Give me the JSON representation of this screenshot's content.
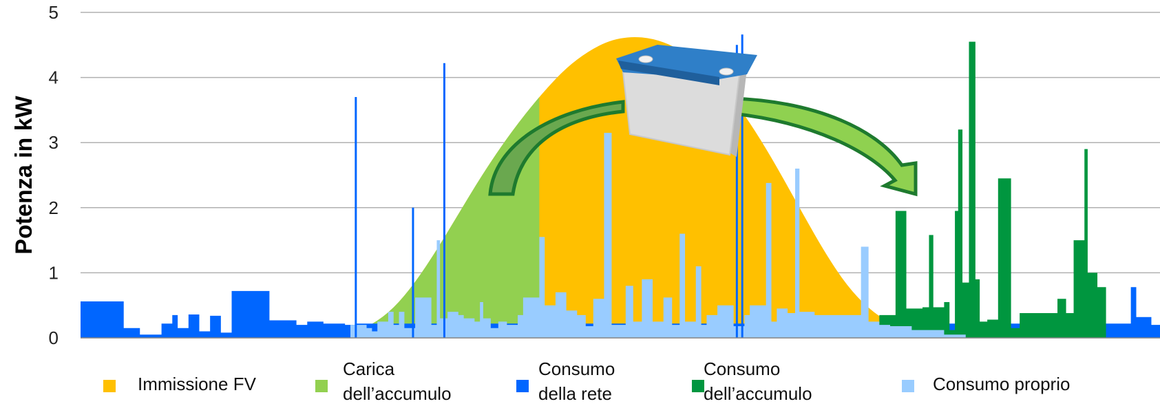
{
  "chart_data": {
    "type": "area",
    "title": "",
    "xlabel": "",
    "ylabel": "Potenza in kW",
    "ylim": [
      0,
      5
    ],
    "yticks": [
      "0",
      "1",
      "2",
      "3",
      "4",
      "5"
    ],
    "grid": true,
    "legend_position": "bottom",
    "colors": {
      "immissione_fv": "#ffc000",
      "carica_accumulo": "#92d050",
      "consumo_rete": "#0066ff",
      "consumo_accumulo": "#00963f",
      "consumo_proprio": "#99ccff"
    },
    "legend": [
      {
        "key": "immissione_fv",
        "lines": [
          "Immissione FV"
        ]
      },
      {
        "key": "carica_accumulo",
        "lines": [
          "Carica",
          "dell’accumulo"
        ]
      },
      {
        "key": "consumo_rete",
        "lines": [
          "Consumo",
          "della rete"
        ]
      },
      {
        "key": "consumo_accumulo",
        "lines": [
          "Consumo",
          "dell’accumulo"
        ]
      },
      {
        "key": "consumo_proprio",
        "lines": [
          "Consumo proprio"
        ]
      }
    ],
    "x_domain": [
      0,
      100
    ],
    "pv_generation": {
      "x": [
        0,
        20,
        23,
        25,
        27,
        29,
        31,
        33,
        35,
        37,
        39,
        41,
        43,
        45,
        47,
        49,
        51,
        53,
        55,
        57,
        59,
        61,
        63,
        65,
        67,
        69,
        71,
        73,
        75,
        77,
        79,
        81,
        82,
        84,
        100
      ],
      "values": [
        0,
        0,
        0.02,
        0.07,
        0.2,
        0.45,
        0.85,
        1.35,
        1.9,
        2.45,
        2.95,
        3.4,
        3.8,
        4.15,
        4.4,
        4.57,
        4.63,
        4.6,
        4.48,
        4.26,
        3.95,
        3.55,
        3.05,
        2.48,
        1.88,
        1.3,
        0.8,
        0.45,
        0.22,
        0.1,
        0.04,
        0.01,
        0,
        0,
        0
      ]
    },
    "charge_window": [
      27,
      42.5
    ],
    "grid_consumption": [
      [
        0,
        0.56
      ],
      [
        4,
        0.15
      ],
      [
        5.5,
        0.05
      ],
      [
        7.5,
        0.22
      ],
      [
        8.5,
        0.35
      ],
      [
        9,
        0.15
      ],
      [
        10,
        0.36
      ],
      [
        11,
        0.1
      ],
      [
        12,
        0.34
      ],
      [
        13,
        0.08
      ],
      [
        14,
        0.72
      ],
      [
        17.5,
        0.27
      ],
      [
        20,
        0.2
      ],
      [
        21,
        0.25
      ],
      [
        22.5,
        0.22
      ],
      [
        24.5,
        0.2
      ],
      [
        25.5,
        0.22
      ],
      [
        97.3,
        0.78
      ],
      [
        97.8,
        0.32
      ],
      [
        99.2,
        0.2
      ],
      [
        100,
        0.2
      ]
    ],
    "storage_consumption": [
      [
        74,
        0.35
      ],
      [
        75.5,
        1.95
      ],
      [
        76.5,
        0.45
      ],
      [
        78,
        0.47
      ],
      [
        78.6,
        1.58
      ],
      [
        79,
        0.47
      ],
      [
        80,
        0.55
      ],
      [
        80.5,
        0.12
      ],
      [
        81,
        1.95
      ],
      [
        81.3,
        3.2
      ],
      [
        81.7,
        0.85
      ],
      [
        82.3,
        4.55
      ],
      [
        82.9,
        0.9
      ],
      [
        83.3,
        0.25
      ],
      [
        84,
        0.28
      ],
      [
        85,
        2.45
      ],
      [
        86.2,
        0.15
      ],
      [
        87,
        0.38
      ],
      [
        90.5,
        0.6
      ],
      [
        91.3,
        0.38
      ],
      [
        92,
        1.5
      ],
      [
        93,
        2.9
      ],
      [
        93.3,
        1.0
      ],
      [
        94.2,
        0.78
      ],
      [
        95,
        0.78
      ]
    ],
    "self_consumption": [
      [
        25,
        0.2
      ],
      [
        26.5,
        0.15
      ],
      [
        27,
        0.1
      ],
      [
        27.5,
        0.25
      ],
      [
        28.5,
        0.4
      ],
      [
        29,
        0.2
      ],
      [
        29.5,
        0.4
      ],
      [
        30,
        0.15
      ],
      [
        31,
        0.62
      ],
      [
        32.5,
        0.2
      ],
      [
        33,
        1.5
      ],
      [
        33.3,
        0.3
      ],
      [
        34,
        0.4
      ],
      [
        35,
        0.35
      ],
      [
        35.5,
        0.3
      ],
      [
        36.5,
        0.25
      ],
      [
        37,
        0.55
      ],
      [
        37.3,
        0.3
      ],
      [
        38,
        0.15
      ],
      [
        38.7,
        0.25
      ],
      [
        39.5,
        0.2
      ],
      [
        40.5,
        0.35
      ],
      [
        41,
        0.62
      ],
      [
        42.5,
        1.55
      ],
      [
        43,
        0.5
      ],
      [
        44,
        0.7
      ],
      [
        45,
        0.42
      ],
      [
        46,
        0.35
      ],
      [
        46.8,
        0.18
      ],
      [
        47.5,
        0.6
      ],
      [
        48.5,
        3.15
      ],
      [
        49.2,
        0.2
      ],
      [
        50.5,
        0.8
      ],
      [
        51.2,
        0.25
      ],
      [
        52,
        0.9
      ],
      [
        53,
        0.25
      ],
      [
        54,
        0.62
      ],
      [
        54.8,
        0.2
      ],
      [
        55.5,
        1.6
      ],
      [
        56,
        0.25
      ],
      [
        57,
        1.1
      ],
      [
        57.5,
        0.2
      ],
      [
        58,
        0.35
      ],
      [
        59,
        0.5
      ],
      [
        60.5,
        0.18
      ],
      [
        61.5,
        0.35
      ],
      [
        62,
        0.5
      ],
      [
        63.5,
        2.38
      ],
      [
        64,
        0.25
      ],
      [
        64.5,
        0.45
      ],
      [
        65.5,
        0.38
      ],
      [
        66.2,
        2.6
      ],
      [
        66.6,
        0.4
      ],
      [
        68,
        0.35
      ],
      [
        72,
        0.35
      ],
      [
        72.3,
        1.4
      ],
      [
        73,
        0.25
      ],
      [
        74,
        0.2
      ],
      [
        75,
        0.18
      ],
      [
        77,
        0.12
      ],
      [
        80,
        0.05
      ],
      [
        82,
        0
      ]
    ],
    "grid_spikes": [
      [
        25.5,
        3.7
      ],
      [
        33.7,
        4.22
      ],
      [
        30.8,
        2.0
      ],
      [
        60.8,
        4.5
      ],
      [
        61.3,
        4.66
      ]
    ]
  }
}
